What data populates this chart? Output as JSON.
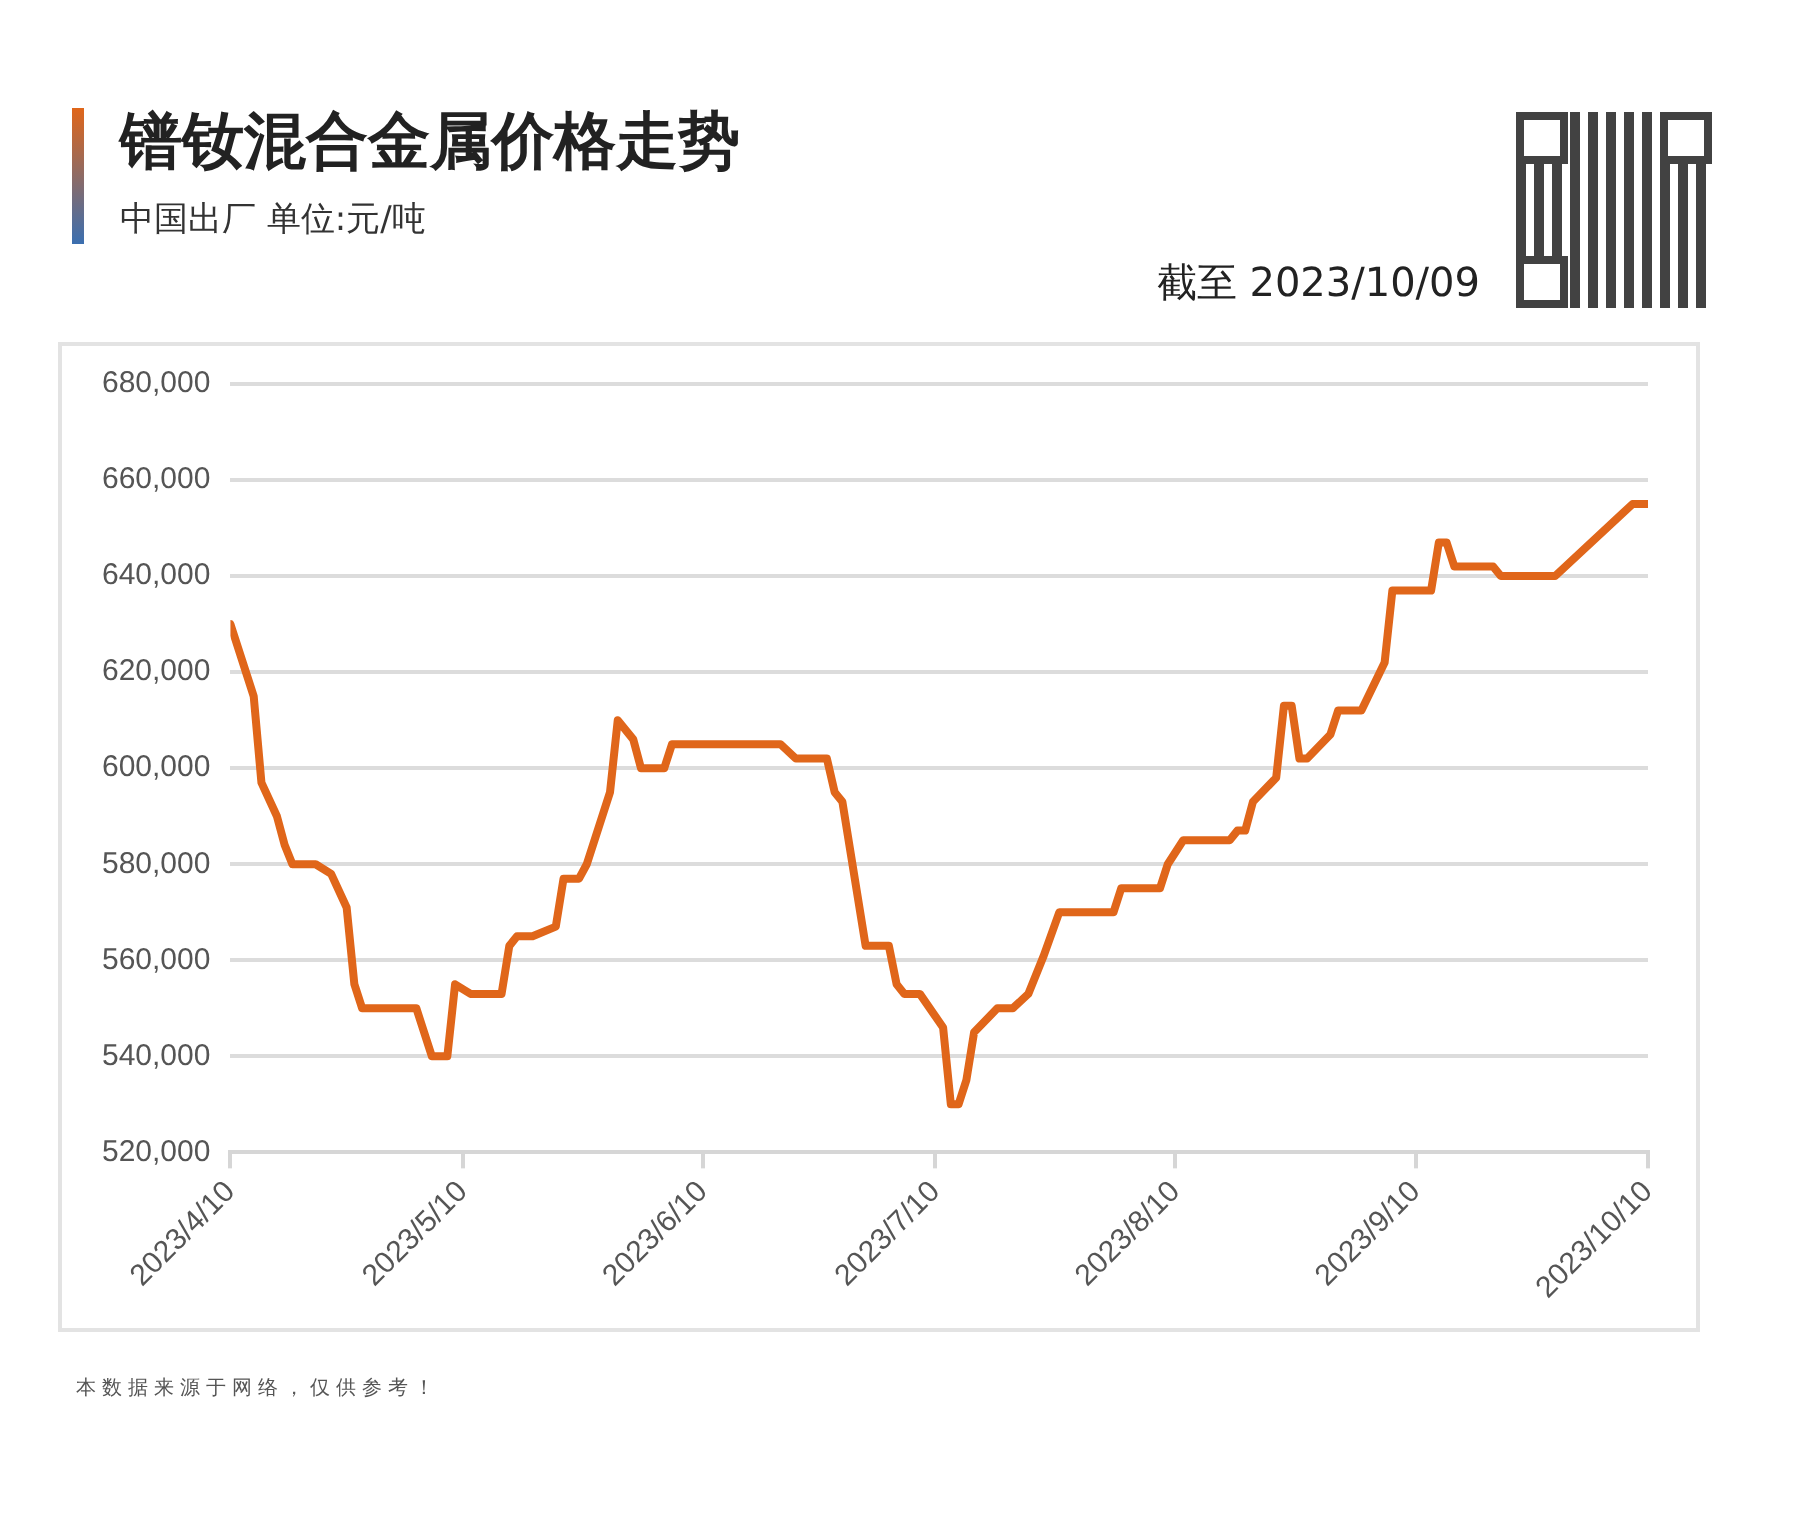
{
  "chart_data": {
    "type": "line",
    "title": "镨钕混合金属价格走势",
    "subtitle": "中国出厂  单位:元/吨",
    "annotations": [
      "截至 2023/10/09",
      "本数据来源于网络，仅供参考！"
    ],
    "x": [
      "2023-04-10",
      "2023-04-13",
      "2023-04-14",
      "2023-04-16",
      "2023-04-17",
      "2023-04-18",
      "2023-04-21",
      "2023-04-23",
      "2023-04-25",
      "2023-04-26",
      "2023-04-27",
      "2023-05-04",
      "2023-05-06",
      "2023-05-08",
      "2023-05-09",
      "2023-05-11",
      "2023-05-15",
      "2023-05-16",
      "2023-05-17",
      "2023-05-19",
      "2023-05-22",
      "2023-05-23",
      "2023-05-25",
      "2023-05-26",
      "2023-05-29",
      "2023-05-30",
      "2023-06-01",
      "2023-06-02",
      "2023-06-05",
      "2023-06-06",
      "2023-06-20",
      "2023-06-22",
      "2023-06-26",
      "2023-06-27",
      "2023-06-28",
      "2023-07-01",
      "2023-07-04",
      "2023-07-05",
      "2023-07-06",
      "2023-07-08",
      "2023-07-11",
      "2023-07-12",
      "2023-07-13",
      "2023-07-14",
      "2023-07-15",
      "2023-07-18",
      "2023-07-20",
      "2023-07-22",
      "2023-07-24",
      "2023-07-26",
      "2023-08-02",
      "2023-08-03",
      "2023-08-08",
      "2023-08-09",
      "2023-08-11",
      "2023-08-17",
      "2023-08-18",
      "2023-08-19",
      "2023-08-20",
      "2023-08-23",
      "2023-08-24",
      "2023-08-25",
      "2023-08-26",
      "2023-08-27",
      "2023-08-30",
      "2023-08-31",
      "2023-09-03",
      "2023-09-06",
      "2023-09-07",
      "2023-09-12",
      "2023-09-13",
      "2023-09-14",
      "2023-09-15",
      "2023-09-20",
      "2023-09-21",
      "2023-09-28",
      "2023-10-08",
      "2023-10-10"
    ],
    "series": [
      {
        "color": "#e0661a",
        "values": [
          630000,
          615000,
          597000,
          590000,
          584000,
          580000,
          580000,
          578000,
          571000,
          555000,
          550000,
          550000,
          540000,
          540000,
          555000,
          553000,
          553000,
          563000,
          565000,
          565000,
          567000,
          577000,
          577000,
          580000,
          595000,
          610000,
          606000,
          600000,
          600000,
          605000,
          605000,
          602000,
          602000,
          595000,
          593000,
          563000,
          563000,
          555000,
          553000,
          553000,
          546000,
          530000,
          530000,
          535000,
          545000,
          550000,
          550000,
          553000,
          561000,
          570000,
          570000,
          575000,
          575000,
          580000,
          585000,
          585000,
          587000,
          587000,
          593000,
          598000,
          613000,
          613000,
          602000,
          602000,
          607000,
          612000,
          612000,
          622000,
          637000,
          637000,
          647000,
          647000,
          642000,
          642000,
          640000,
          640000,
          655000,
          655000
        ]
      }
    ],
    "xlim": [
      "2023-04-10",
      "2023-10-10"
    ],
    "xticks": [
      {
        "value": "2023-04-10",
        "label": "2023/4/10"
      },
      {
        "value": "2023-05-10",
        "label": "2023/5/10"
      },
      {
        "value": "2023-06-10",
        "label": "2023/6/10"
      },
      {
        "value": "2023-07-10",
        "label": "2023/7/10"
      },
      {
        "value": "2023-08-10",
        "label": "2023/8/10"
      },
      {
        "value": "2023-09-10",
        "label": "2023/9/10"
      },
      {
        "value": "2023-10-10",
        "label": "2023/10/10"
      }
    ],
    "ylim": [
      520000,
      680000
    ],
    "yticks": [
      {
        "value": 520000,
        "label": "520,000"
      },
      {
        "value": 540000,
        "label": "540,000"
      },
      {
        "value": 560000,
        "label": "560,000"
      },
      {
        "value": 580000,
        "label": "580,000"
      },
      {
        "value": 600000,
        "label": "600,000"
      },
      {
        "value": 620000,
        "label": "620,000"
      },
      {
        "value": 640000,
        "label": "640,000"
      },
      {
        "value": 660000,
        "label": "660,000"
      },
      {
        "value": 680000,
        "label": "680,000"
      }
    ],
    "grid": "y",
    "legend": false,
    "marker": "none",
    "line_style": "solid"
  }
}
